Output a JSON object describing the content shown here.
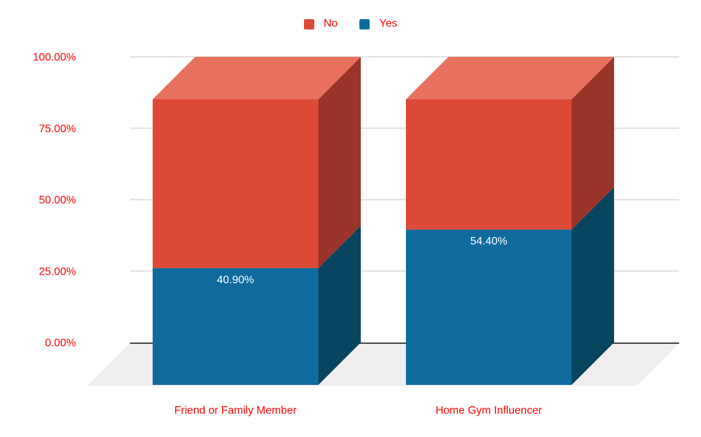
{
  "legend": {
    "position": "top",
    "items": [
      {
        "label": "No",
        "color": "#DD4A37"
      },
      {
        "label": "Yes",
        "color": "#0F6B9E"
      }
    ]
  },
  "chart_data": {
    "type": "bar",
    "subtype": "stacked-3d-column",
    "title": "",
    "categories": [
      "Friend or Family Member",
      "Home Gym Influencer"
    ],
    "series": [
      {
        "name": "Yes",
        "values": [
          40.9,
          54.4
        ],
        "data_labels": [
          "40.90%",
          "54.40%"
        ],
        "color": "#0F6B9E",
        "side_color": "#084560",
        "label_color": "#FFFFFF"
      },
      {
        "name": "No",
        "values": [
          59.1,
          45.6
        ],
        "data_labels": [
          null,
          null
        ],
        "color": "#DD4A37",
        "side_color": "#9A3429",
        "top_color": "#E8705F"
      }
    ],
    "ylim": [
      0,
      100
    ],
    "yticks": [
      "0.00%",
      "25.00%",
      "50.00%",
      "75.00%",
      "100.00%"
    ],
    "grid": true,
    "legend_position": "top",
    "axis_color": "#FF0000",
    "grid_color": "#E0E0E0",
    "baseline_color": "#424242",
    "floor_color": "#EFEFEF"
  }
}
